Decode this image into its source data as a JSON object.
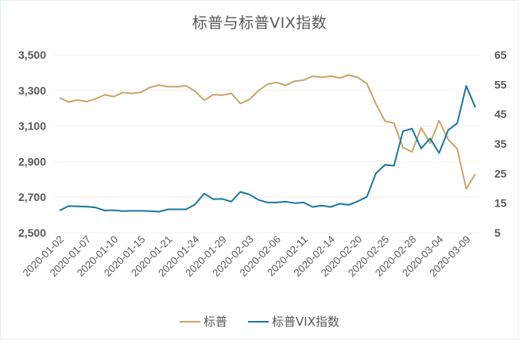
{
  "chart_data": {
    "type": "line",
    "title": "标普与标普VIX指数",
    "xlabel": "",
    "ylabel_left": "",
    "ylabel_right": "",
    "ylim_left": [
      2500,
      3500
    ],
    "ylim_right": [
      5,
      65
    ],
    "yticks_left": [
      "3,500",
      "3,300",
      "3,100",
      "2,900",
      "2,700",
      "2,500"
    ],
    "yticks_right": [
      "65",
      "55",
      "45",
      "35",
      "25",
      "15",
      "5"
    ],
    "grid": true,
    "legend_position": "bottom",
    "x_tick_labels": [
      "2020-01-02",
      "2020-01-07",
      "2020-01-10",
      "2020-01-15",
      "2020-01-21",
      "2020-01-24",
      "2020-01-29",
      "2020-02-03",
      "2020-02-06",
      "2020-02-11",
      "2020-02-14",
      "2020-02-20",
      "2020-02-25",
      "2020-02-28",
      "2020-03-04",
      "2020-03-09"
    ],
    "x": [
      "2020-01-02",
      "2020-01-03",
      "2020-01-06",
      "2020-01-07",
      "2020-01-08",
      "2020-01-09",
      "2020-01-10",
      "2020-01-13",
      "2020-01-14",
      "2020-01-15",
      "2020-01-16",
      "2020-01-17",
      "2020-01-21",
      "2020-01-22",
      "2020-01-23",
      "2020-01-24",
      "2020-01-27",
      "2020-01-28",
      "2020-01-29",
      "2020-01-30",
      "2020-01-31",
      "2020-02-03",
      "2020-02-04",
      "2020-02-05",
      "2020-02-06",
      "2020-02-07",
      "2020-02-10",
      "2020-02-11",
      "2020-02-12",
      "2020-02-13",
      "2020-02-14",
      "2020-02-18",
      "2020-02-19",
      "2020-02-20",
      "2020-02-21",
      "2020-02-24",
      "2020-02-25",
      "2020-02-26",
      "2020-02-27",
      "2020-02-28",
      "2020-03-02",
      "2020-03-03",
      "2020-03-04",
      "2020-03-05",
      "2020-03-06",
      "2020-03-09",
      "2020-03-10"
    ],
    "series": [
      {
        "name": "标普",
        "axis": "left",
        "color": "#c9a66b",
        "values": [
          3258,
          3235,
          3246,
          3237,
          3253,
          3275,
          3265,
          3288,
          3283,
          3289,
          3317,
          3330,
          3321,
          3321,
          3326,
          3295,
          3244,
          3276,
          3273,
          3284,
          3226,
          3249,
          3298,
          3335,
          3345,
          3328,
          3352,
          3358,
          3379,
          3374,
          3380,
          3370,
          3386,
          3373,
          3338,
          3225,
          3128,
          3116,
          2979,
          2954,
          3090,
          3003,
          3130,
          3024,
          2972,
          2747,
          2830
        ]
      },
      {
        "name": "标普VIX指数",
        "axis": "right",
        "color": "#1a78a0",
        "values": [
          12.5,
          14.0,
          13.9,
          13.8,
          13.5,
          12.5,
          12.6,
          12.3,
          12.4,
          12.4,
          12.3,
          12.1,
          12.9,
          12.9,
          12.9,
          14.6,
          18.2,
          16.3,
          16.4,
          15.5,
          18.8,
          17.9,
          16.1,
          15.2,
          15.2,
          15.5,
          15.0,
          15.2,
          13.7,
          14.2,
          13.7,
          14.8,
          14.4,
          15.6,
          17.1,
          25.0,
          27.9,
          27.6,
          39.2,
          40.1,
          33.4,
          36.8,
          31.9,
          39.6,
          41.9,
          54.5,
          47.3
        ]
      }
    ]
  },
  "title": "标普与标普VIX指数",
  "legend": [
    {
      "label": "标普",
      "color": "#c9a66b"
    },
    {
      "label": "标普VIX指数",
      "color": "#1a78a0"
    }
  ]
}
